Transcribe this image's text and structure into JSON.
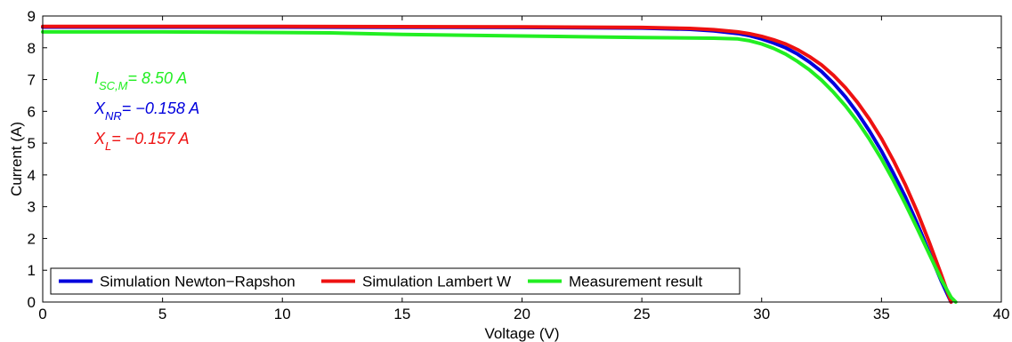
{
  "chart_data": {
    "type": "line",
    "xlabel": "Voltage (V)",
    "ylabel": "Current (A)",
    "xlim": [
      0,
      40
    ],
    "ylim": [
      0,
      9
    ],
    "x_ticks": [
      "0",
      "5",
      "10",
      "15",
      "20",
      "25",
      "30",
      "35",
      "40"
    ],
    "y_ticks": [
      "0",
      "1",
      "2",
      "3",
      "4",
      "5",
      "6",
      "7",
      "8",
      "9"
    ],
    "grid": false,
    "legend_position": "bottom-left",
    "series": [
      {
        "name": "Simulation Newton−Rapshon",
        "color": "#0000dd",
        "x": [
          0,
          10,
          20,
          25,
          27,
          28,
          29,
          29.5,
          30,
          30.5,
          31,
          31.5,
          32,
          32.5,
          33,
          33.5,
          34,
          34.5,
          35,
          35.5,
          36,
          36.5,
          37,
          37.5,
          37.9
        ],
        "y": [
          8.65,
          8.65,
          8.64,
          8.62,
          8.58,
          8.53,
          8.45,
          8.38,
          8.28,
          8.15,
          8.0,
          7.8,
          7.55,
          7.25,
          6.88,
          6.45,
          5.95,
          5.38,
          4.75,
          4.05,
          3.3,
          2.45,
          1.55,
          0.65,
          0.0
        ]
      },
      {
        "name": "Simulation Lambert W",
        "color": "#ee1111",
        "x": [
          0,
          10,
          20,
          25,
          27,
          28,
          29,
          29.5,
          30,
          30.5,
          31,
          31.5,
          32,
          32.5,
          33,
          33.5,
          34,
          34.5,
          35,
          35.5,
          36,
          36.5,
          37,
          37.5,
          37.9
        ],
        "y": [
          8.67,
          8.67,
          8.66,
          8.64,
          8.61,
          8.57,
          8.5,
          8.44,
          8.36,
          8.25,
          8.12,
          7.94,
          7.72,
          7.46,
          7.13,
          6.74,
          6.28,
          5.75,
          5.14,
          4.45,
          3.68,
          2.82,
          1.87,
          0.85,
          0.0
        ]
      },
      {
        "name": "Measurement result",
        "color": "#22ee22",
        "x": [
          0,
          5,
          10,
          12,
          15,
          20,
          25,
          28,
          29,
          29.5,
          30,
          30.5,
          31,
          31.5,
          32,
          32.5,
          33,
          33.5,
          34,
          34.5,
          35,
          35.5,
          36,
          36.5,
          37,
          37.5,
          37.9,
          38.1
        ],
        "y": [
          8.5,
          8.5,
          8.48,
          8.47,
          8.42,
          8.37,
          8.32,
          8.3,
          8.28,
          8.22,
          8.12,
          7.98,
          7.8,
          7.57,
          7.3,
          6.98,
          6.6,
          6.17,
          5.68,
          5.12,
          4.5,
          3.82,
          3.08,
          2.3,
          1.5,
          0.7,
          0.15,
          0.0
        ]
      }
    ],
    "annotations": [
      {
        "main": "I",
        "sub": "SC,M",
        "rest": "= 8.50 A",
        "color": "#22ee22"
      },
      {
        "main": "X",
        "sub": "NR",
        "rest": "= −0.158 A",
        "color": "#0000dd"
      },
      {
        "main": "X",
        "sub": "L",
        "rest": "= −0.157 A",
        "color": "#ee1111"
      }
    ]
  }
}
